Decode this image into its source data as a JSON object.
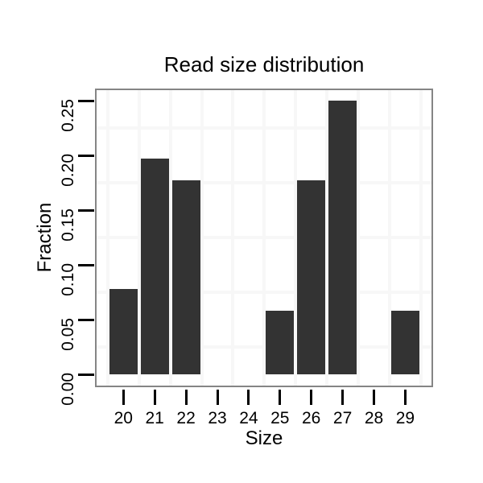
{
  "title": "Read size distribution",
  "axes": {
    "x": {
      "label": "Size",
      "tick_labels": [
        "20",
        "21",
        "22",
        "23",
        "24",
        "25",
        "26",
        "27",
        "28",
        "29"
      ]
    },
    "y": {
      "label": "Fraction",
      "tick_labels": [
        "0.00",
        "0.05",
        "0.10",
        "0.15",
        "0.20",
        "0.25"
      ],
      "tick_values": [
        0,
        0.05,
        0.1,
        0.15,
        0.2,
        0.25
      ]
    }
  },
  "chart_data": {
    "type": "bar",
    "title": "Read size distribution",
    "xlabel": "Size",
    "ylabel": "Fraction",
    "categories": [
      20,
      21,
      22,
      23,
      24,
      25,
      26,
      27,
      28,
      29
    ],
    "values": [
      0.078,
      0.197,
      0.177,
      0,
      0,
      0.058,
      0.177,
      0.25,
      0,
      0.058
    ],
    "ylim": [
      0,
      0.25
    ],
    "yticks": [
      0,
      0.05,
      0.1,
      0.15,
      0.2,
      0.25
    ],
    "grid": "faint minor gridlines between ticks, both directions",
    "legend": "none"
  },
  "colors": {
    "bar": "#333333",
    "panel_border": "#858585",
    "gridline": "#f7f7f7",
    "tick": "#000000",
    "text": "#000000",
    "background": "#ffffff"
  }
}
